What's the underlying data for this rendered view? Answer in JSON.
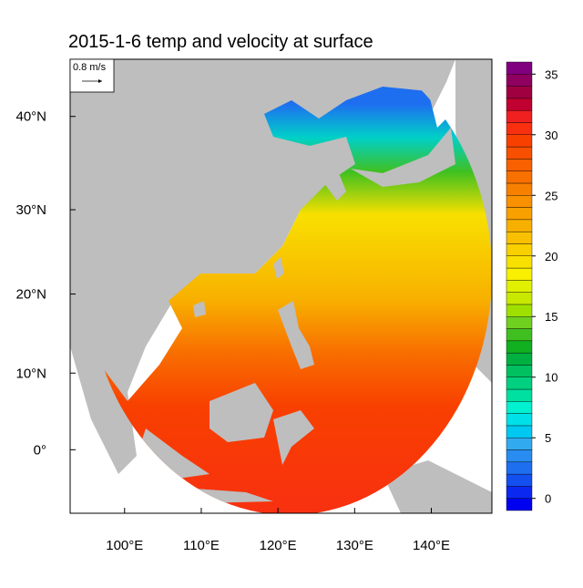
{
  "chart_data": {
    "type": "map",
    "title": "2015-1-6 temp and velocity at surface",
    "reference_vector": "0.8 m/s",
    "xlim": [
      92.9,
      147.9
    ],
    "ylim": [
      -8.3,
      45.5
    ],
    "xticks": [
      {
        "value": 100,
        "label": "100°E"
      },
      {
        "value": 110,
        "label": "110°E"
      },
      {
        "value": 120,
        "label": "120°E"
      },
      {
        "value": 130,
        "label": "130°E"
      },
      {
        "value": 140,
        "label": "140°E"
      }
    ],
    "yticks": [
      {
        "value": 0,
        "label": "0°"
      },
      {
        "value": 10,
        "label": "10°N"
      },
      {
        "value": 20,
        "label": "20°N"
      },
      {
        "value": 30,
        "label": "30°N"
      },
      {
        "value": 40,
        "label": "40°N"
      }
    ],
    "colorbar": {
      "lim": [
        -1,
        36
      ],
      "ticks": [
        0,
        5,
        10,
        15,
        20,
        25,
        30,
        35
      ],
      "colors": [
        "#0000f0",
        "#0a28f0",
        "#1450f0",
        "#1e6ef0",
        "#288cf0",
        "#32aaf0",
        "#00c8f0",
        "#00e0e8",
        "#00f0d0",
        "#00e0a0",
        "#00d080",
        "#00c060",
        "#00b040",
        "#10b020",
        "#40c020",
        "#70d020",
        "#a0e000",
        "#c8e800",
        "#e0f000",
        "#f8f000",
        "#f8e000",
        "#f8d000",
        "#f8c000",
        "#f8b000",
        "#f8a000",
        "#f89000",
        "#f88000",
        "#f87000",
        "#f86000",
        "#f85000",
        "#f84000",
        "#f83010",
        "#f02020",
        "#c00030",
        "#a00040",
        "#900060",
        "#800080"
      ]
    }
  }
}
